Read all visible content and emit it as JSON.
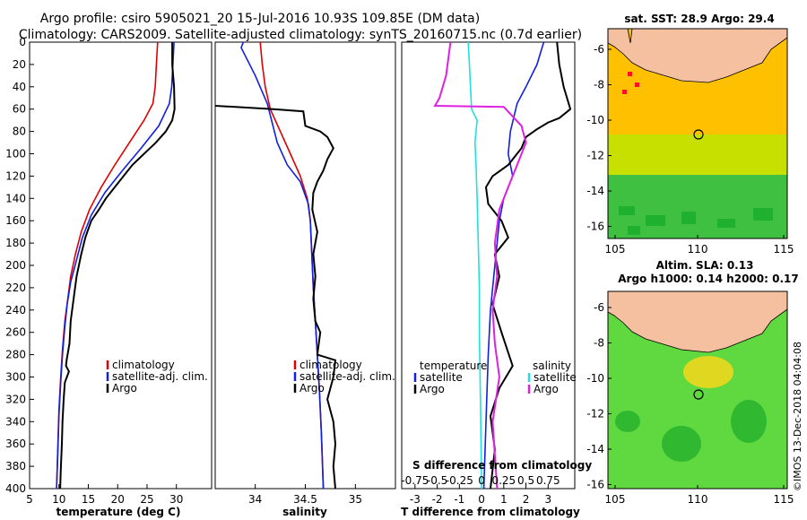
{
  "header": {
    "title_line1": "Argo profile: csiro 5905021_20 15-Jul-2016 10.93S 109.85E (DM data)",
    "title_line2": "Climatology: CARS2009. Satellite-adjusted climatology: synTS_20160715.nc (0.7d earlier)"
  },
  "colors": {
    "climatology": "#e00000",
    "satellite": "#1020e0",
    "argo": "#000000",
    "sat_salinity": "#20e0e0",
    "argo_salinity": "#e020e0",
    "land": "#f5c0a0"
  },
  "chart_data": [
    {
      "type": "line",
      "id": "temperature-panel",
      "xlabel": "temperature (deg C)",
      "ylabel": "",
      "xlim": [
        5,
        36
      ],
      "ylim": [
        400,
        0
      ],
      "xticks": [
        5,
        10,
        15,
        20,
        25,
        30
      ],
      "yticks": [
        0,
        20,
        40,
        60,
        80,
        100,
        120,
        140,
        160,
        180,
        200,
        220,
        240,
        260,
        280,
        300,
        320,
        340,
        360,
        380,
        400
      ],
      "legend": [
        "climatology",
        "satellite-adj. clim.",
        "Argo"
      ],
      "series": [
        {
          "name": "climatology",
          "x": [
            26.8,
            26.6,
            26.4,
            26.0,
            24.5,
            22.0,
            19.5,
            17.2,
            15.2,
            13.8,
            12.8,
            12.0,
            11.5,
            11.0,
            10.6,
            10.3,
            10.0,
            9.8,
            9.6
          ],
          "y": [
            0,
            20,
            40,
            55,
            70,
            90,
            110,
            130,
            150,
            170,
            190,
            210,
            230,
            250,
            275,
            300,
            330,
            365,
            400
          ]
        },
        {
          "name": "satellite-adj. clim.",
          "x": [
            29.6,
            29.4,
            29.2,
            28.8,
            27.0,
            24.0,
            20.8,
            17.8,
            15.5,
            14.0,
            13.0,
            12.0,
            11.4,
            11.0,
            10.6,
            10.3,
            10.0,
            9.8,
            9.6
          ],
          "y": [
            0,
            20,
            40,
            55,
            75,
            95,
            115,
            135,
            155,
            175,
            195,
            215,
            235,
            255,
            280,
            305,
            335,
            370,
            400
          ]
        },
        {
          "name": "Argo",
          "x": [
            29.3,
            29.3,
            29.6,
            29.7,
            29.3,
            28.2,
            26.5,
            24.5,
            22.5,
            21.0,
            19.5,
            18.0,
            16.8,
            15.5,
            14.5,
            13.8,
            13.0,
            12.5,
            12.0,
            11.8,
            11.3,
            11.2,
            11.7,
            11.0,
            10.8,
            10.6,
            10.5,
            10.3,
            10.2
          ],
          "y": [
            0,
            20,
            40,
            60,
            70,
            80,
            90,
            100,
            110,
            120,
            130,
            140,
            150,
            160,
            175,
            190,
            210,
            230,
            250,
            270,
            285,
            290,
            295,
            305,
            320,
            340,
            360,
            385,
            400
          ]
        }
      ]
    },
    {
      "type": "line",
      "id": "salinity-panel",
      "xlabel": "salinity",
      "xlim": [
        33.6,
        35.4
      ],
      "ylim": [
        400,
        0
      ],
      "xticks": [
        34,
        34.5,
        35
      ],
      "xticklabels": [
        "34",
        "34.5",
        "35"
      ],
      "legend": [
        "climatology",
        "satellite-adj. clim.",
        "Argo"
      ],
      "series": [
        {
          "name": "climatology",
          "x": [
            34.05,
            34.07,
            34.1,
            34.15,
            34.25,
            34.35,
            34.45,
            34.52,
            34.55,
            34.56,
            34.57,
            34.58,
            34.6,
            34.62,
            34.64,
            34.66,
            34.68
          ],
          "y": [
            0,
            20,
            40,
            60,
            80,
            100,
            120,
            140,
            160,
            180,
            200,
            220,
            250,
            280,
            310,
            350,
            400
          ]
        },
        {
          "name": "satellite-adj. clim.",
          "x": [
            33.88,
            33.86,
            34.0,
            34.12,
            34.22,
            34.32,
            34.45,
            34.53,
            34.55,
            34.56,
            34.57,
            34.58,
            34.6,
            34.62,
            34.64,
            34.66,
            34.68
          ],
          "y": [
            0,
            5,
            30,
            55,
            90,
            110,
            125,
            145,
            160,
            180,
            200,
            220,
            250,
            280,
            310,
            350,
            400
          ]
        },
        {
          "name": "Argo",
          "x": [
            33.6,
            34.18,
            34.48,
            34.5,
            34.65,
            34.72,
            34.78,
            34.72,
            34.68,
            34.62,
            34.58,
            34.57,
            34.62,
            34.58,
            34.6,
            34.58,
            34.6,
            34.65,
            34.62,
            34.8,
            34.78,
            34.72,
            34.78,
            34.8,
            34.78,
            34.8
          ],
          "y": [
            57,
            60,
            62,
            75,
            80,
            85,
            95,
            105,
            115,
            125,
            135,
            150,
            170,
            190,
            210,
            230,
            250,
            260,
            280,
            285,
            300,
            320,
            340,
            360,
            380,
            400
          ]
        }
      ]
    },
    {
      "type": "line",
      "id": "difference-panel",
      "xlabel": "T difference from climatology",
      "top_xlabel": "S difference from climatology",
      "xlim": [
        -3.6,
        4.2
      ],
      "ylim": [
        400,
        0
      ],
      "xticks": [
        -3,
        -2,
        -1,
        0,
        1,
        2,
        3
      ],
      "xticklabels": [
        "-3",
        "-2",
        "-1",
        "0",
        "1",
        "2",
        "3"
      ],
      "top_xticklabels": [
        "-0.75",
        "-0.5",
        "-0.25",
        "0",
        "0.25",
        "0.5",
        "0.75"
      ],
      "legend_temperature": {
        "title": "temperature",
        "items": [
          "satellite",
          "Argo"
        ]
      },
      "legend_salinity": {
        "title": "salinity",
        "items": [
          "satellite",
          "Argo"
        ]
      },
      "series": [
        {
          "name": "T satellite",
          "x": [
            2.8,
            2.5,
            2.0,
            1.6,
            1.3,
            1.2,
            1.4,
            1.0,
            0.8,
            0.6,
            0.4,
            0.3,
            0.2,
            0.1
          ],
          "y": [
            0,
            20,
            40,
            55,
            80,
            100,
            120,
            140,
            160,
            200,
            240,
            280,
            340,
            400
          ]
        },
        {
          "name": "T Argo",
          "x": [
            3.4,
            3.5,
            3.7,
            4.0,
            3.5,
            3.0,
            2.5,
            2.0,
            1.8,
            1.2,
            0.5,
            0.2,
            0.3,
            0.9,
            1.2,
            0.6,
            0.8,
            0.5,
            0.9,
            1.4,
            0.8,
            0.4,
            0.6,
            0.4
          ],
          "y": [
            0,
            20,
            40,
            60,
            68,
            72,
            78,
            85,
            95,
            110,
            120,
            130,
            145,
            160,
            175,
            190,
            210,
            235,
            260,
            290,
            310,
            335,
            365,
            400
          ]
        },
        {
          "name": "S satellite",
          "x": [
            -0.6,
            -0.55,
            -0.45,
            -0.2,
            -0.3,
            -0.25,
            -0.2,
            -0.15,
            -0.1,
            -0.1,
            -0.05,
            0.0
          ],
          "y": [
            0,
            20,
            60,
            70,
            90,
            110,
            140,
            180,
            220,
            260,
            320,
            400
          ]
        },
        {
          "name": "S Argo",
          "x": [
            -1.4,
            -1.6,
            -1.9,
            -2.1,
            1.0,
            1.8,
            2.0,
            1.6,
            1.2,
            0.8,
            0.6,
            0.7,
            0.5,
            0.6,
            0.8,
            0.5,
            0.7
          ],
          "y": [
            0,
            30,
            50,
            57,
            58,
            75,
            90,
            110,
            130,
            150,
            180,
            210,
            240,
            270,
            300,
            340,
            400
          ]
        }
      ]
    }
  ],
  "maps": {
    "sst": {
      "title": "sat. SST: 28.9 Argo: 29.4",
      "xticklabels": [
        "105",
        "110",
        "115"
      ],
      "yticklabels": [
        "-6",
        "-8",
        "-10",
        "-12",
        "-14",
        "-16"
      ]
    },
    "sla": {
      "title_line1": "Altim. SLA: 0.13",
      "title_line2": "Argo h1000: 0.14 h2000: 0.17",
      "xticklabels": [
        "105",
        "110",
        "115"
      ],
      "yticklabels": [
        "-6",
        "-8",
        "-10",
        "-12",
        "-14",
        "-16"
      ]
    }
  },
  "credit": "©IMOS 13-Dec-2018 04:04:08"
}
